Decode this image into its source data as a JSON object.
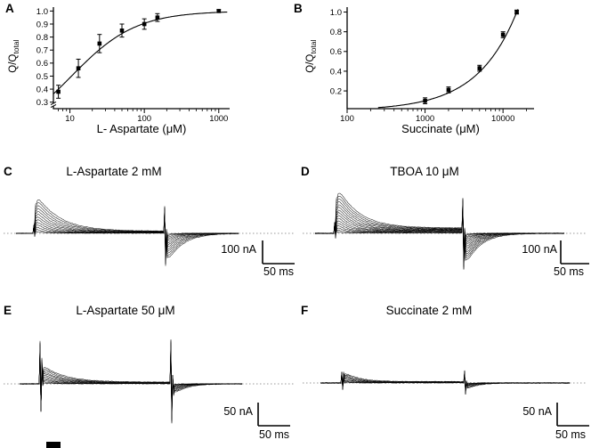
{
  "figure": {
    "background": "#ffffff",
    "ink": "#000000"
  },
  "panels": {
    "a": {
      "label": "A",
      "ylabel_main": "Q/Q",
      "ylabel_sub": "total",
      "xlabel": "L- Aspartate (μM)"
    },
    "b": {
      "label": "B",
      "ylabel_main": "Q/Q",
      "ylabel_sub": "total",
      "xlabel": "Succinate (μM)"
    },
    "c": {
      "label": "C",
      "title": "L-Aspartate 2 mM",
      "v_scale": "100 nA",
      "h_scale": "50 ms"
    },
    "d": {
      "label": "D",
      "title": "TBOA 10 μM",
      "v_scale": "100 nA",
      "h_scale": "50 ms"
    },
    "e": {
      "label": "E",
      "title": "L-Aspartate 50 μM",
      "v_scale": "50 nA",
      "h_scale": "50 ms"
    },
    "f": {
      "label": "F",
      "title": "Succinate 2 mM",
      "v_scale": "50 nA",
      "h_scale": "50 ms"
    }
  },
  "chart_data": [
    {
      "id": "A",
      "type": "scatter",
      "title": "",
      "xlabel": "L- Aspartate (μM)",
      "ylabel": "Q/Q total",
      "xscale": "log",
      "xlim": [
        6,
        1400
      ],
      "ylim": [
        0.25,
        1.03
      ],
      "xticks": [
        10,
        100,
        1000
      ],
      "yticks": [
        0.3,
        0.4,
        0.5,
        0.6,
        0.7,
        0.8,
        0.9,
        1.0
      ],
      "axis_break_y": true,
      "grid": false,
      "points": {
        "x": [
          7,
          13,
          25,
          50,
          100,
          150,
          1000
        ],
        "y": [
          0.38,
          0.56,
          0.75,
          0.85,
          0.9,
          0.95,
          1.0
        ],
        "yerr": [
          0.05,
          0.07,
          0.07,
          0.05,
          0.04,
          0.03,
          0.01
        ]
      },
      "fit": {
        "type": "saturation",
        "k": 10.5,
        "range": [
          6,
          1300
        ]
      }
    },
    {
      "id": "B",
      "type": "scatter",
      "title": "",
      "xlabel": "Succinate (μM)",
      "ylabel": "Q/Q total",
      "xscale": "log",
      "xlim": [
        100,
        25000
      ],
      "ylim": [
        0.02,
        1.05
      ],
      "xticks": [
        100,
        1000,
        10000
      ],
      "yticks": [
        0.2,
        0.4,
        0.6,
        0.8,
        1.0
      ],
      "axis_break_y": false,
      "grid": false,
      "points": {
        "x": [
          1000,
          2000,
          5000,
          10000,
          15000
        ],
        "y": [
          0.1,
          0.21,
          0.43,
          0.77,
          1.0
        ],
        "yerr": [
          0.03,
          0.03,
          0.03,
          0.03,
          0.02
        ]
      },
      "fit": {
        "type": "power",
        "x0": 15000,
        "exp": 0.85,
        "range": [
          250,
          15500
        ]
      }
    }
  ],
  "trace_data": {
    "C": {
      "n_traces": 13,
      "on_amp": 46,
      "on_tau_min": 5,
      "on_tau_max": 26,
      "tail_amp": 40,
      "tail_tau_min": 4,
      "tail_tau_max": 17,
      "sustain": 2.5,
      "artifact_on": 9,
      "artifact_off": 28,
      "noise": 0.6,
      "seed": 11
    },
    "D": {
      "n_traces": 16,
      "on_amp": 53,
      "on_tau_min": 4,
      "on_tau_max": 24,
      "tail_amp": 46,
      "tail_tau_min": 4,
      "tail_tau_max": 16,
      "sustain": 6,
      "artifact_on": 12,
      "artifact_off": 34,
      "noise": 0.7,
      "seed": 23
    },
    "E": {
      "n_traces": 12,
      "on_amp": 22,
      "on_tau_min": 5,
      "on_tau_max": 24,
      "tail_amp": 15,
      "tail_tau_min": 4,
      "tail_tau_max": 14,
      "sustain": 2,
      "artifact_on": 48,
      "artifact_off": 48,
      "noise": 0.7,
      "seed": 37
    },
    "F": {
      "n_traces": 10,
      "on_amp": 13,
      "on_tau_min": 4,
      "on_tau_max": 16,
      "tail_amp": 9,
      "tail_tau_min": 3,
      "tail_tau_max": 12,
      "sustain": 1.5,
      "artifact_on": 13,
      "artifact_off": 13,
      "noise": 0.9,
      "seed": 51
    }
  }
}
